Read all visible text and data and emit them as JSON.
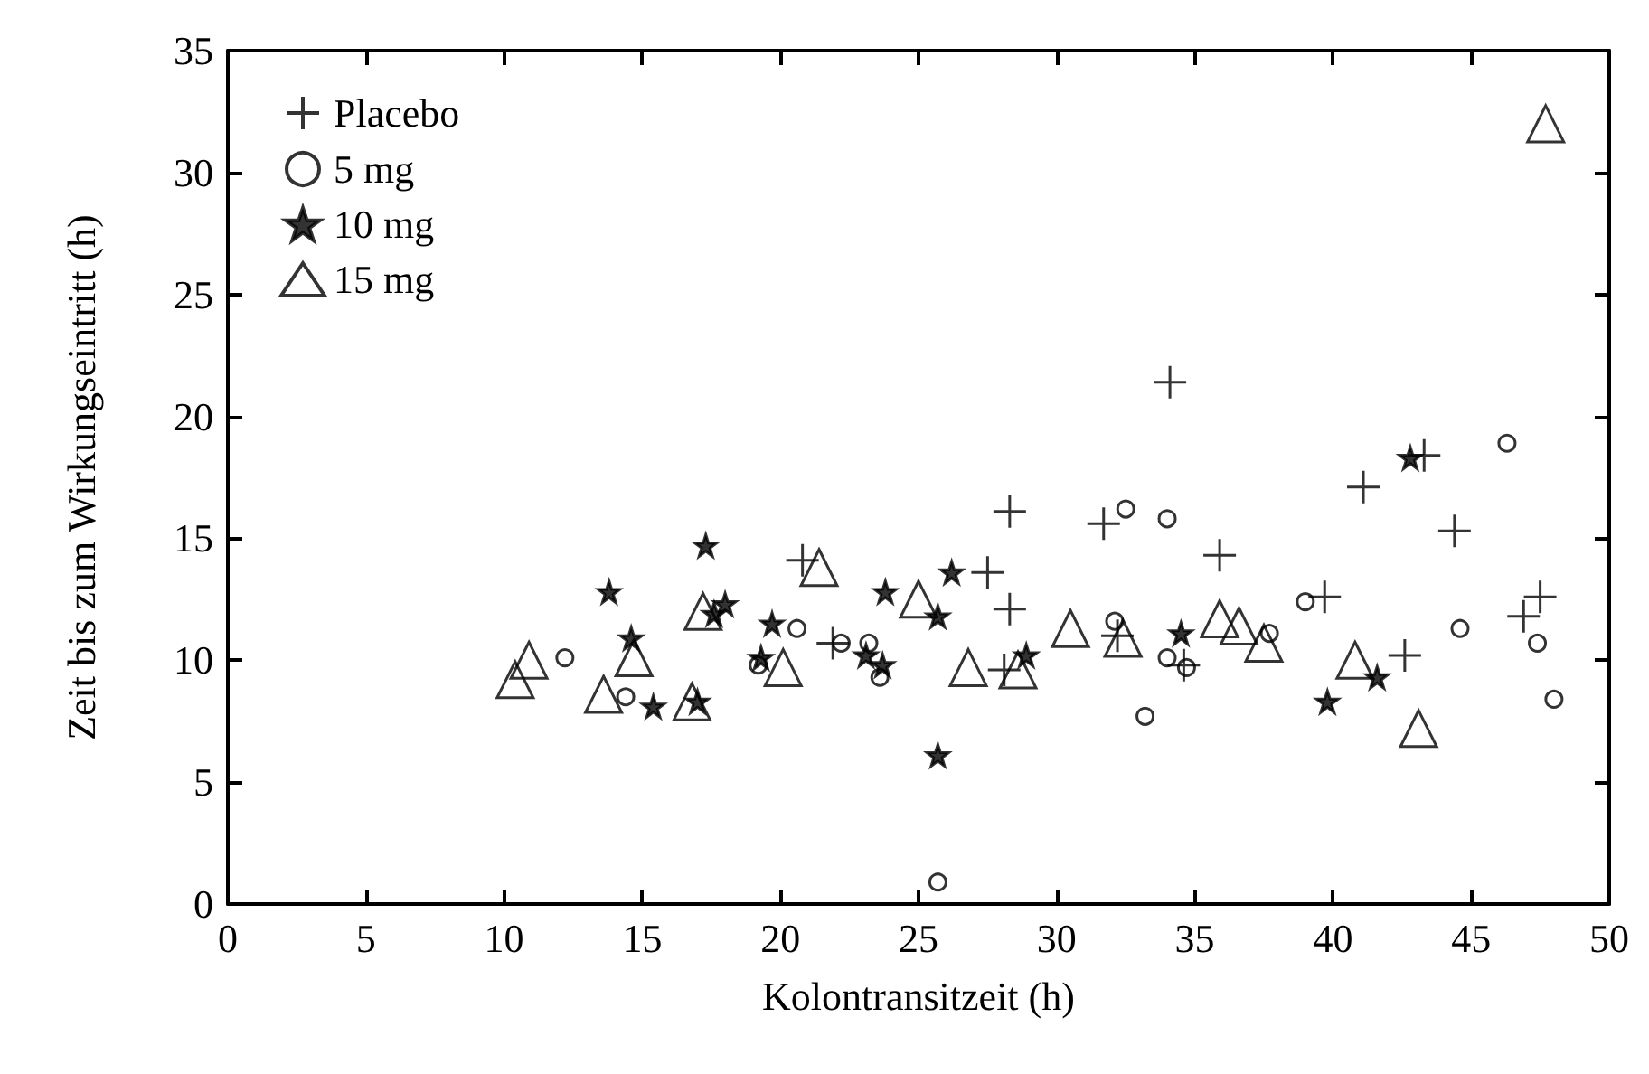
{
  "chart_data": {
    "type": "scatter",
    "xlabel": "Kolontransitzeit (h)",
    "ylabel": "Zeit bis zum Wirkungseintritt (h)",
    "xlim": [
      0,
      50
    ],
    "ylim": [
      0,
      35
    ],
    "xticks": [
      0,
      5,
      10,
      15,
      20,
      25,
      30,
      35,
      40,
      45,
      50
    ],
    "yticks": [
      0,
      5,
      10,
      15,
      20,
      25,
      30,
      35
    ],
    "grid": false,
    "legend": "top left",
    "series": [
      {
        "name": "Placebo",
        "color": "#000000",
        "marker": "cross",
        "x": [
          20.8,
          21.9,
          27.5,
          28.3,
          28.3,
          28.1,
          31.7,
          32.2,
          34.1,
          34.6,
          35.9,
          39.7,
          41.1,
          42.6,
          43.3,
          44.4,
          46.9,
          47.5
        ],
        "values": [
          14.1,
          10.7,
          13.6,
          16.1,
          12.1,
          9.6,
          15.6,
          11.0,
          21.4,
          9.8,
          14.3,
          12.6,
          17.1,
          10.2,
          18.4,
          15.3,
          11.8,
          12.6
        ]
      },
      {
        "name": "5 mg",
        "color": "#000000",
        "marker": "circle",
        "x": [
          12.2,
          14.4,
          19.2,
          20.6,
          22.2,
          23.2,
          23.6,
          25.7,
          32.1,
          32.5,
          33.2,
          34.0,
          34.0,
          34.7,
          37.7,
          39.0,
          44.6,
          46.3,
          47.4,
          48.0
        ],
        "values": [
          10.1,
          8.5,
          9.8,
          11.3,
          10.7,
          10.7,
          9.3,
          0.9,
          11.6,
          16.2,
          7.7,
          15.8,
          10.1,
          9.7,
          11.1,
          12.4,
          11.3,
          18.9,
          10.7,
          8.4
        ]
      },
      {
        "name": "10 mg",
        "color": "#000000",
        "marker": "star",
        "x": [
          13.8,
          14.6,
          15.4,
          17.0,
          17.3,
          17.6,
          18.0,
          19.3,
          19.7,
          23.1,
          23.7,
          23.8,
          25.7,
          25.7,
          26.2,
          28.9,
          34.5,
          39.8,
          41.6,
          42.8
        ],
        "values": [
          12.8,
          10.9,
          8.1,
          8.3,
          14.7,
          11.9,
          12.3,
          10.1,
          11.5,
          10.2,
          9.8,
          12.8,
          11.8,
          6.1,
          13.6,
          10.2,
          11.1,
          8.3,
          9.3,
          18.3
        ]
      },
      {
        "name": "15 mg",
        "color": "#000000",
        "marker": "triangle",
        "x": [
          10.4,
          10.9,
          13.6,
          14.7,
          16.8,
          17.2,
          20.1,
          21.4,
          25.0,
          26.8,
          28.6,
          30.5,
          32.4,
          35.9,
          36.6,
          37.5,
          40.8,
          43.1,
          47.7
        ],
        "values": [
          9.2,
          10.0,
          8.6,
          10.1,
          8.3,
          12.0,
          9.7,
          13.8,
          12.5,
          9.7,
          9.6,
          11.3,
          10.9,
          11.7,
          11.4,
          10.7,
          10.0,
          7.2,
          32.0
        ]
      }
    ]
  }
}
